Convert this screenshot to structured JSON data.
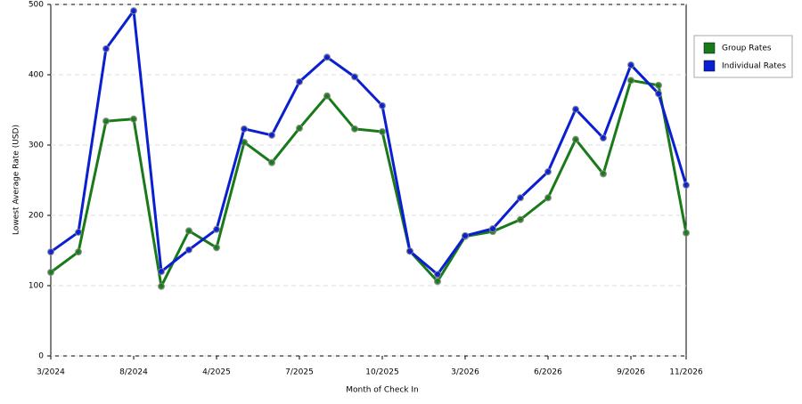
{
  "chart_data": {
    "type": "line",
    "x_label": "Month of Check In",
    "y_label": "Lowest Average Rate (USD)",
    "categories": [
      "3/2024",
      null,
      null,
      "8/2024",
      null,
      null,
      "4/2025",
      null,
      null,
      "7/2025",
      null,
      null,
      "10/2025",
      null,
      null,
      "3/2026",
      null,
      null,
      "6/2026",
      null,
      null,
      "9/2026",
      null,
      "11/2026"
    ],
    "series": [
      {
        "name": "Group Rates",
        "color": "#1a7a1a",
        "values": [
          119,
          148,
          334,
          337,
          99,
          178,
          154,
          304,
          275,
          324,
          370,
          323,
          319,
          149,
          106,
          170,
          177,
          194,
          225,
          308,
          259,
          392,
          385,
          175
        ]
      },
      {
        "name": "Individual Rates",
        "color": "#0a1fd0",
        "values": [
          148,
          176,
          437,
          491,
          120,
          151,
          180,
          323,
          314,
          390,
          425,
          397,
          356,
          149,
          116,
          171,
          181,
          225,
          262,
          351,
          310,
          414,
          373,
          243
        ]
      }
    ],
    "ylim": [
      0,
      500
    ],
    "yticks": [
      0,
      100,
      200,
      300,
      400,
      500
    ],
    "grid": true,
    "legend": "right"
  }
}
